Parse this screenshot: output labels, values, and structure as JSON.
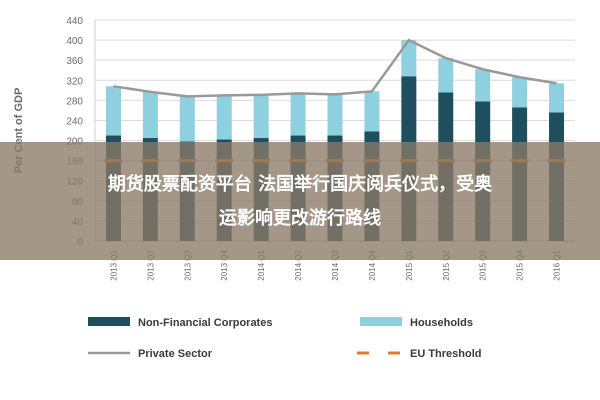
{
  "chart_data": {
    "type": "bar",
    "ylabel": "Per Cent of GDP",
    "ylim": [
      0,
      440
    ],
    "yticks": [
      0,
      40,
      80,
      120,
      160,
      200,
      240,
      280,
      320,
      360,
      400,
      440
    ],
    "categories": [
      "2013 Q1",
      "2013 Q2",
      "2013 Q3",
      "2013 Q4",
      "2014 Q1",
      "2014 Q2",
      "2014 Q3",
      "2014 Q4",
      "2015 Q1",
      "2015 Q2",
      "2015 Q3",
      "2015 Q4",
      "2016 Q1"
    ],
    "series": [
      {
        "name": "Non-Financial Corporates",
        "kind": "bar",
        "color": "#1f4e5f",
        "values": [
          210,
          205,
          198,
          202,
          205,
          210,
          210,
          218,
          328,
          296,
          278,
          266,
          256
        ]
      },
      {
        "name": "Households",
        "kind": "bar-stacked",
        "color": "#8ed0e0",
        "values": [
          98,
          92,
          90,
          88,
          86,
          84,
          82,
          80,
          72,
          68,
          64,
          60,
          58
        ]
      },
      {
        "name": "Private Sector",
        "kind": "line",
        "color": "#999999",
        "values": [
          308,
          297,
          288,
          290,
          291,
          294,
          292,
          298,
          400,
          364,
          342,
          326,
          314
        ]
      },
      {
        "name": "EU Threshold",
        "kind": "dashed-line",
        "color": "#e07a2e",
        "values": [
          160,
          160,
          160,
          160,
          160,
          160,
          160,
          160,
          160,
          160,
          160,
          160,
          160
        ]
      }
    ],
    "legend_placement": "bottom",
    "grid": true
  },
  "overlay": {
    "line1": "期货股票配资平台 法国举行国庆阅兵仪式，受奥",
    "line2": "运影响更改游行路线"
  }
}
